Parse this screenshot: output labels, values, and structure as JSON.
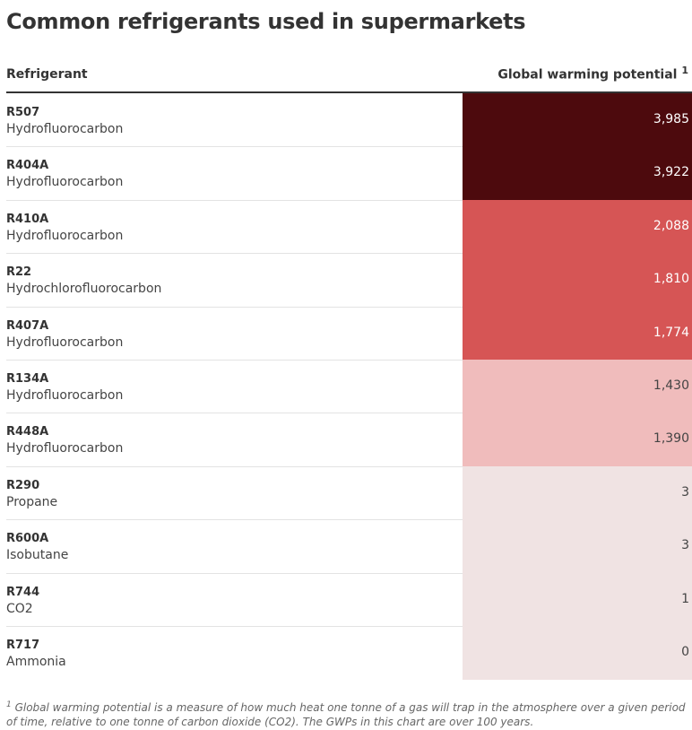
{
  "title": "Common refrigerants used in supermarkets",
  "header": {
    "refrigerant": "Refrigerant",
    "gwp": "Global warming potential",
    "note_marker": "1"
  },
  "table": {
    "rows": [
      {
        "name": "R507",
        "kind": "Hydrofluorocarbon",
        "gwp": "3,985",
        "color": "#4d0a0d"
      },
      {
        "name": "R404A",
        "kind": "Hydrofluorocarbon",
        "gwp": "3,922",
        "color": "#4d0a0d"
      },
      {
        "name": "R410A",
        "kind": "Hydrofluorocarbon",
        "gwp": "2,088",
        "color": "#d65555"
      },
      {
        "name": "R22",
        "kind": "Hydrochlorofluorocarbon",
        "gwp": "1,810",
        "color": "#d65555"
      },
      {
        "name": "R407A",
        "kind": "Hydrofluorocarbon",
        "gwp": "1,774",
        "color": "#d65555"
      },
      {
        "name": "R134A",
        "kind": "Hydrofluorocarbon",
        "gwp": "1,430",
        "color": "#f0bcbc"
      },
      {
        "name": "R448A",
        "kind": "Hydrofluorocarbon",
        "gwp": "1,390",
        "color": "#f0bcbc"
      },
      {
        "name": "R290",
        "kind": "Propane",
        "gwp": "3",
        "color": "#f0e3e3"
      },
      {
        "name": "R600A",
        "kind": "Isobutane",
        "gwp": "3",
        "color": "#f0e3e3"
      },
      {
        "name": "R744",
        "kind": "CO2",
        "gwp": "1",
        "color": "#f0e3e3"
      },
      {
        "name": "R717",
        "kind": "Ammonia",
        "gwp": "0",
        "color": "#f0e3e3"
      }
    ]
  },
  "footnote": {
    "marker": "1",
    "text": "Global warming potential is a measure of how much heat one tonne of a gas will trap in the atmosphere over a given period of time, relative to one tonne of carbon dioxide (CO2). The GWPs in this chart are over 100 years."
  }
}
